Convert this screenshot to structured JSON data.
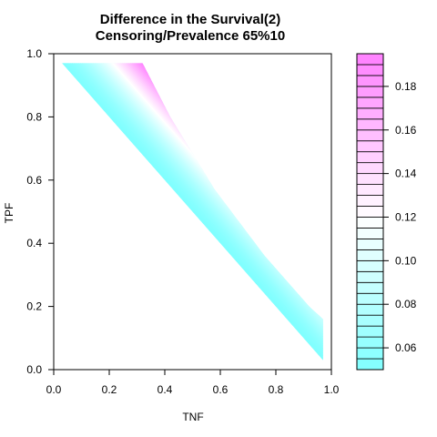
{
  "chart_data": {
    "type": "heatmap",
    "title_line1": "Difference in the Survival(2)",
    "title_line2": "Censoring/Prevalence 65%10",
    "xlabel": "TNF",
    "ylabel": "TPF",
    "xlim": [
      0,
      1
    ],
    "ylim": [
      0,
      1
    ],
    "x_ticks": [
      {
        "value": 0.0,
        "label": "0.0"
      },
      {
        "value": 0.2,
        "label": "0.2"
      },
      {
        "value": 0.4,
        "label": "0.4"
      },
      {
        "value": 0.6,
        "label": "0.6"
      },
      {
        "value": 0.8,
        "label": "0.8"
      },
      {
        "value": 1.0,
        "label": "1.0"
      }
    ],
    "y_ticks": [
      {
        "value": 0.0,
        "label": "0.0"
      },
      {
        "value": 0.2,
        "label": "0.2"
      },
      {
        "value": 0.4,
        "label": "0.4"
      },
      {
        "value": 0.6,
        "label": "0.6"
      },
      {
        "value": 0.8,
        "label": "0.8"
      },
      {
        "value": 1.0,
        "label": "1.0"
      }
    ],
    "grid": false,
    "region": {
      "description_free": true,
      "upper_boundary": [
        {
          "tnf": 0.03,
          "tpf": 0.97
        },
        {
          "tnf": 0.32,
          "tpf": 0.97
        },
        {
          "tnf": 0.42,
          "tpf": 0.8
        },
        {
          "tnf": 0.58,
          "tpf": 0.57
        },
        {
          "tnf": 0.76,
          "tpf": 0.36
        },
        {
          "tnf": 0.92,
          "tpf": 0.2
        },
        {
          "tnf": 0.97,
          "tpf": 0.16
        },
        {
          "tnf": 0.97,
          "tpf": 0.05
        }
      ],
      "lower_boundary": [
        {
          "tnf": 0.03,
          "tpf": 0.97
        },
        {
          "tnf": 0.5,
          "tpf": 0.5
        },
        {
          "tnf": 0.97,
          "tpf": 0.03
        }
      ],
      "low_value": 0.05,
      "high_value": 0.195
    },
    "colorbar": {
      "min": 0.05,
      "max": 0.195,
      "tick_values": [
        0.06,
        0.08,
        0.1,
        0.12,
        0.14,
        0.16,
        0.18
      ],
      "tick_labels": [
        "0.06",
        "0.08",
        "0.10",
        "0.12",
        "0.14",
        "0.16",
        "0.18"
      ],
      "n_bins": 29,
      "low_color": "#80ffff",
      "mid_color": "#ffffff",
      "high_color": "#ff80ff"
    }
  }
}
